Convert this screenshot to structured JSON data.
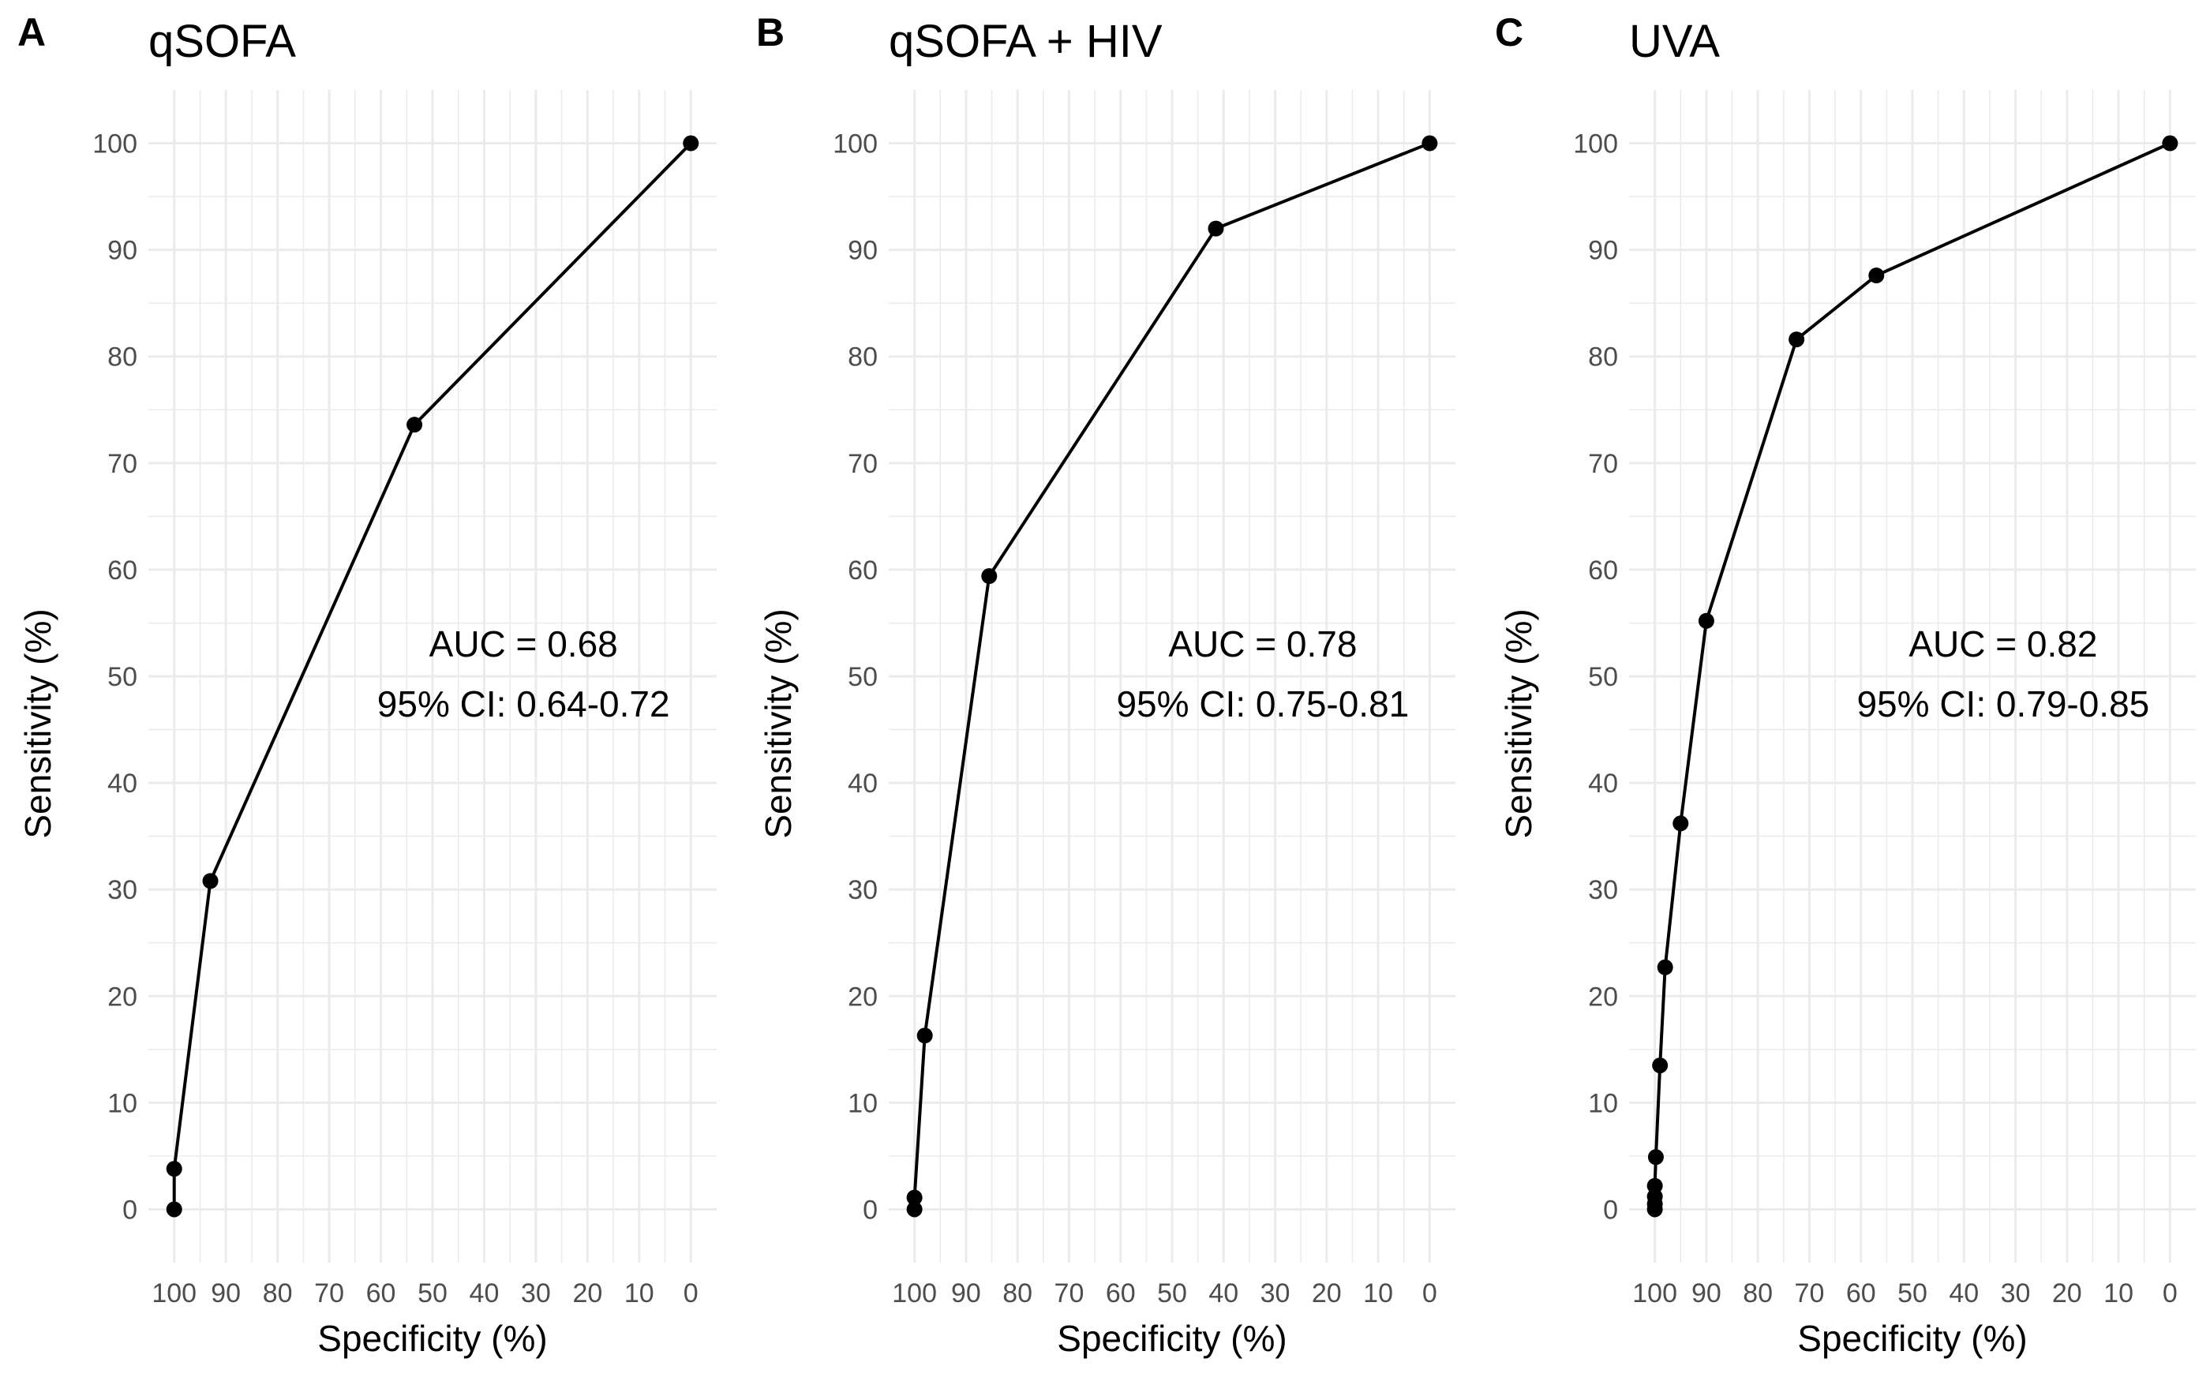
{
  "chart_data": [
    {
      "type": "line",
      "panel": "A",
      "title": "qSOFA",
      "xlabel": "Specificity (%)",
      "ylabel": "Sensitivity (%)",
      "xlim": [
        105,
        -5
      ],
      "ylim": [
        -5,
        105
      ],
      "xticks": [
        100,
        90,
        80,
        70,
        60,
        50,
        40,
        30,
        20,
        10,
        0
      ],
      "yticks": [
        0,
        10,
        20,
        30,
        40,
        50,
        60,
        70,
        80,
        90,
        100
      ],
      "grid": true,
      "points": [
        {
          "specificity": 100,
          "sensitivity": 0
        },
        {
          "specificity": 100,
          "sensitivity": 3.8
        },
        {
          "specificity": 93,
          "sensitivity": 30.8
        },
        {
          "specificity": 53.5,
          "sensitivity": 73.6
        },
        {
          "specificity": 0,
          "sensitivity": 100
        }
      ],
      "annotation": {
        "auc": "AUC = 0.68",
        "ci": "95% CI: 0.64-0.72"
      }
    },
    {
      "type": "line",
      "panel": "B",
      "title": "qSOFA + HIV",
      "xlabel": "Specificity (%)",
      "ylabel": "Sensitivity (%)",
      "xlim": [
        105,
        -5
      ],
      "ylim": [
        -5,
        105
      ],
      "xticks": [
        100,
        90,
        80,
        70,
        60,
        50,
        40,
        30,
        20,
        10,
        0
      ],
      "yticks": [
        0,
        10,
        20,
        30,
        40,
        50,
        60,
        70,
        80,
        90,
        100
      ],
      "grid": true,
      "points": [
        {
          "specificity": 100,
          "sensitivity": 0
        },
        {
          "specificity": 100,
          "sensitivity": 1.1
        },
        {
          "specificity": 98,
          "sensitivity": 16.3
        },
        {
          "specificity": 85.5,
          "sensitivity": 59.4
        },
        {
          "specificity": 41.5,
          "sensitivity": 92
        },
        {
          "specificity": 0,
          "sensitivity": 100
        }
      ],
      "annotation": {
        "auc": "AUC = 0.78",
        "ci": "95% CI: 0.75-0.81"
      }
    },
    {
      "type": "line",
      "panel": "C",
      "title": "UVA",
      "xlabel": "Specificity (%)",
      "ylabel": "Sensitivity (%)",
      "xlim": [
        105,
        -5
      ],
      "ylim": [
        -5,
        105
      ],
      "xticks": [
        100,
        90,
        80,
        70,
        60,
        50,
        40,
        30,
        20,
        10,
        0
      ],
      "yticks": [
        0,
        10,
        20,
        30,
        40,
        50,
        60,
        70,
        80,
        90,
        100
      ],
      "grid": true,
      "points": [
        {
          "specificity": 100,
          "sensitivity": 0
        },
        {
          "specificity": 100,
          "sensitivity": 0.5
        },
        {
          "specificity": 100,
          "sensitivity": 1.2
        },
        {
          "specificity": 100,
          "sensitivity": 2.2
        },
        {
          "specificity": 99.8,
          "sensitivity": 4.9
        },
        {
          "specificity": 99,
          "sensitivity": 13.5
        },
        {
          "specificity": 98,
          "sensitivity": 22.7
        },
        {
          "specificity": 95,
          "sensitivity": 36.2
        },
        {
          "specificity": 90,
          "sensitivity": 55.2
        },
        {
          "specificity": 72.5,
          "sensitivity": 81.6
        },
        {
          "specificity": 57,
          "sensitivity": 87.6
        },
        {
          "specificity": 0,
          "sensitivity": 100
        }
      ],
      "annotation": {
        "auc": "AUC = 0.82",
        "ci": "95% CI: 0.79-0.85"
      }
    }
  ]
}
